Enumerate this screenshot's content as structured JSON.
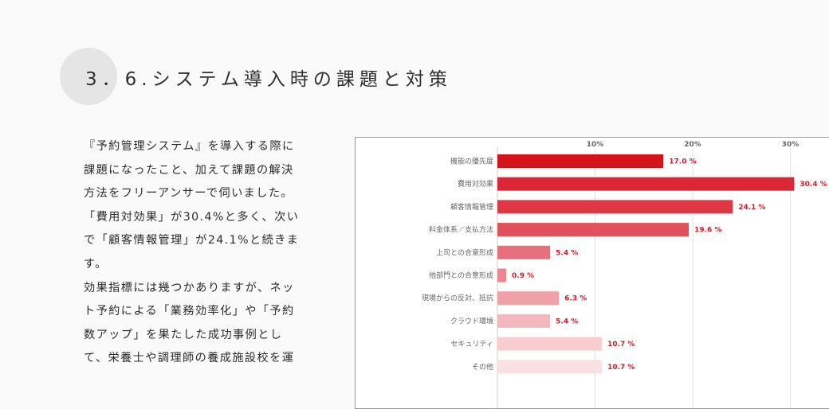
{
  "header": {
    "title": "3．6.システム導入時の課題と対策"
  },
  "body": {
    "lines": [
      "『予約管理システム』を導入する際に",
      "課題になったこと、加えて課題の解決",
      "方法をフリーアンサーで伺いました。",
      "「費用対効果」が30.4%と多く、次い",
      "で「顧客情報管理」が24.1%と続きま",
      "す。",
      "効果指標には幾つかありますが、ネッ",
      "ト予約による「業務効率化」や「予約",
      "数アップ」を果たした成功事例とし",
      "て、栄養士や調理師の養成施設校を運"
    ]
  },
  "chart_data": {
    "type": "bar",
    "orientation": "horizontal",
    "categories": [
      "機能の優先度",
      "費用対効果",
      "顧客情報管理",
      "料金体系／支払方法",
      "上司との合意形成",
      "他部門との合意形成",
      "現場からの反対、抵抗",
      "クラウド環境",
      "セキュリティ",
      "その他"
    ],
    "values": [
      17.0,
      30.4,
      24.1,
      19.6,
      5.4,
      0.9,
      6.3,
      5.4,
      10.7,
      10.7
    ],
    "value_labels": [
      "17.0 %",
      "30.4 %",
      "24.1 %",
      "19.6 %",
      "5.4 %",
      "0.9 %",
      "6.3 %",
      "5.4 %",
      "10.7 %",
      "10.7 %"
    ],
    "colors": [
      "#d4141c",
      "#dc2535",
      "#df3845",
      "#e3505d",
      "#e8707b",
      "#ec8690",
      "#f0a1a8",
      "#f3b8bd",
      "#f7cdd0",
      "#f9e0e2"
    ],
    "xticks": [
      "10%",
      "20%",
      "30%"
    ],
    "xlim": [
      0,
      30
    ],
    "grid": true
  }
}
